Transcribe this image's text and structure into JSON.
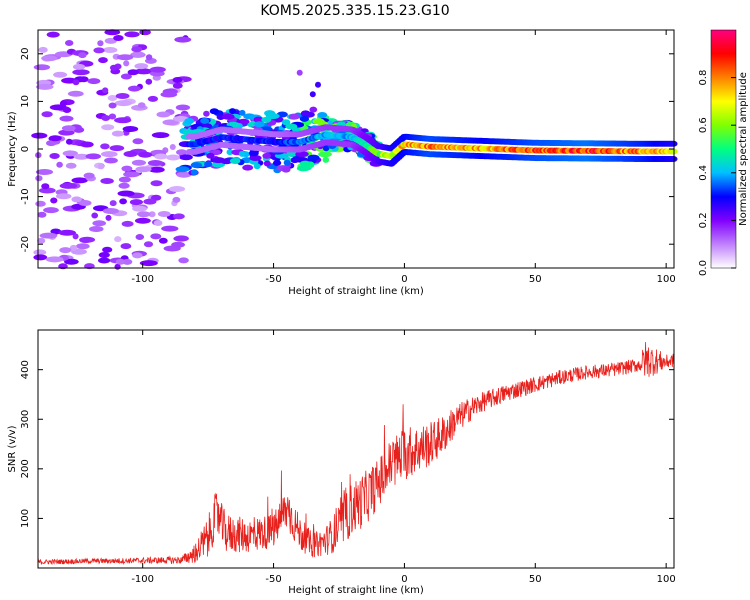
{
  "title": "KOM5.2025.335.15.23.G10",
  "chart_data": [
    {
      "type": "heatmap",
      "xlabel": "Height of straight line (km)",
      "ylabel": "Frequency (Hz)",
      "xlim": [
        -140,
        103
      ],
      "ylim": [
        -25,
        25
      ],
      "xticks": [
        -100,
        -50,
        0,
        50,
        100
      ],
      "yticks": [
        -20,
        -10,
        0,
        10,
        20
      ],
      "colorbar": {
        "label": "Normalized spectral amplitude",
        "range": [
          0,
          1
        ],
        "ticks": [
          0.0,
          0.2,
          0.4,
          0.6,
          0.8
        ],
        "colors": [
          "#ffffff",
          "#c080ff",
          "#8000ff",
          "#0000ff",
          "#00c0ff",
          "#00ff80",
          "#80ff00",
          "#ffff00",
          "#ff8000",
          "#ff0000",
          "#ff0080"
        ]
      },
      "ridge": {
        "x": [
          -80,
          -70,
          -60,
          -50,
          -40,
          -30,
          -20,
          -15,
          -10,
          -5,
          0,
          10,
          20,
          30,
          50,
          70,
          90,
          103
        ],
        "frequency": [
          1,
          2.5,
          2,
          1.5,
          1.5,
          3,
          2.5,
          1,
          -1,
          -1.5,
          1,
          0.5,
          0.3,
          0.1,
          -0.3,
          -0.4,
          -0.5,
          -0.5
        ],
        "amplitude": [
          0.3,
          0.3,
          0.3,
          0.3,
          0.35,
          0.4,
          0.4,
          0.5,
          0.6,
          0.7,
          0.75,
          0.85,
          0.8,
          0.75,
          0.85,
          0.9,
          0.8,
          0.7
        ]
      },
      "noise_region_x": [
        -140,
        -83
      ]
    },
    {
      "type": "line",
      "xlabel": "Height of straight line (km)",
      "ylabel": "SNR (v/v)",
      "xlim": [
        -140,
        103
      ],
      "ylim": [
        0,
        480
      ],
      "xticks": [
        -100,
        -50,
        0,
        50,
        100
      ],
      "yticks": [
        100,
        200,
        300,
        400
      ],
      "color": "#e8201c",
      "x": [
        -140,
        -120,
        -100,
        -85,
        -80,
        -75,
        -72,
        -68,
        -60,
        -50,
        -45,
        -40,
        -35,
        -30,
        -25,
        -20,
        -15,
        -10,
        -5,
        0,
        5,
        10,
        15,
        20,
        25,
        30,
        40,
        50,
        60,
        70,
        80,
        90,
        92,
        100,
        103
      ],
      "y": [
        12,
        14,
        15,
        16,
        30,
        60,
        110,
        70,
        65,
        75,
        120,
        70,
        45,
        55,
        80,
        120,
        140,
        170,
        210,
        230,
        240,
        250,
        270,
        300,
        320,
        335,
        355,
        370,
        385,
        395,
        400,
        410,
        420,
        415,
        420
      ],
      "spread": [
        5,
        5,
        6,
        8,
        20,
        45,
        45,
        40,
        35,
        35,
        45,
        35,
        25,
        30,
        45,
        55,
        55,
        50,
        55,
        55,
        50,
        45,
        40,
        30,
        25,
        20,
        18,
        16,
        15,
        14,
        14,
        14,
        40,
        15,
        14
      ]
    }
  ]
}
